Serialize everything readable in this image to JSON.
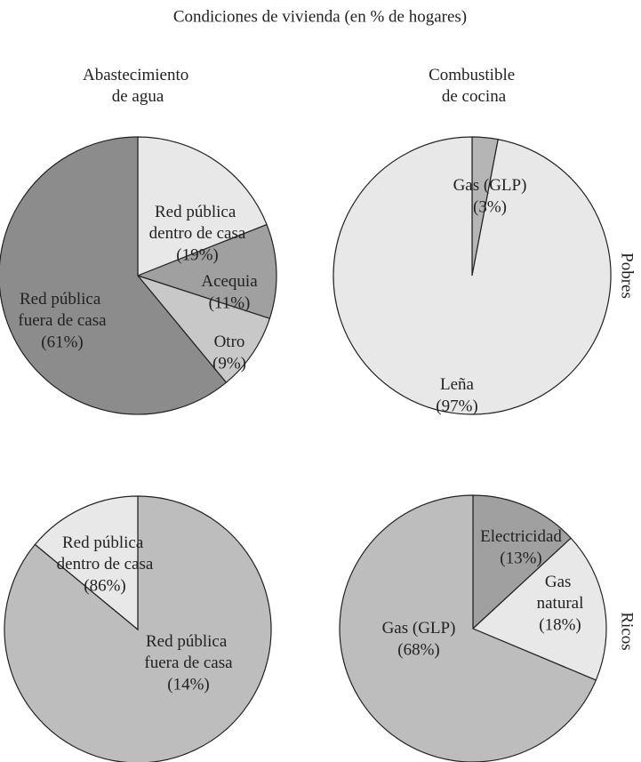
{
  "title": "Condiciones de vivienda (en % de hogares)",
  "column_labels": [
    "Abastecimiento\nde agua",
    "Combustible\nde cocina"
  ],
  "row_labels": [
    "Pobres",
    "Ricos"
  ],
  "chart_data": [
    {
      "type": "pie",
      "categories": [
        "Red pública\ndentro de casa",
        "Acequia",
        "Otro",
        "Red pública\nfuera de casa"
      ],
      "values": [
        19,
        11,
        9,
        61
      ],
      "value_labels": [
        "(19%)",
        "(11%)",
        "(9%)",
        "(61%)"
      ],
      "colors": [
        "#e8e8e8",
        "#a0a0a0",
        "#c8c8c8",
        "#8c8c8c"
      ]
    },
    {
      "type": "pie",
      "categories": [
        "Gas (GLP)",
        "Leña"
      ],
      "values": [
        3,
        97
      ],
      "value_labels": [
        "(3%)",
        "(97%)"
      ],
      "colors": [
        "#b5b5b5",
        "#e8e8e8"
      ]
    },
    {
      "type": "pie",
      "categories": [
        "Red pública\ndentro de casa",
        "Red pública\nfuera de casa"
      ],
      "values": [
        86,
        14
      ],
      "value_labels": [
        "(86%)",
        "(14%)"
      ],
      "colors": [
        "#bdbdbd",
        "#e8e8e8"
      ]
    },
    {
      "type": "pie",
      "categories": [
        "Electricidad",
        "Gas\nnatural",
        "Gas (GLP)"
      ],
      "values": [
        13,
        18,
        68
      ],
      "value_labels": [
        "(13%)",
        "(18%)",
        "(68%)"
      ],
      "colors": [
        "#a0a0a0",
        "#e8e8e8",
        "#bdbdbd"
      ]
    }
  ]
}
